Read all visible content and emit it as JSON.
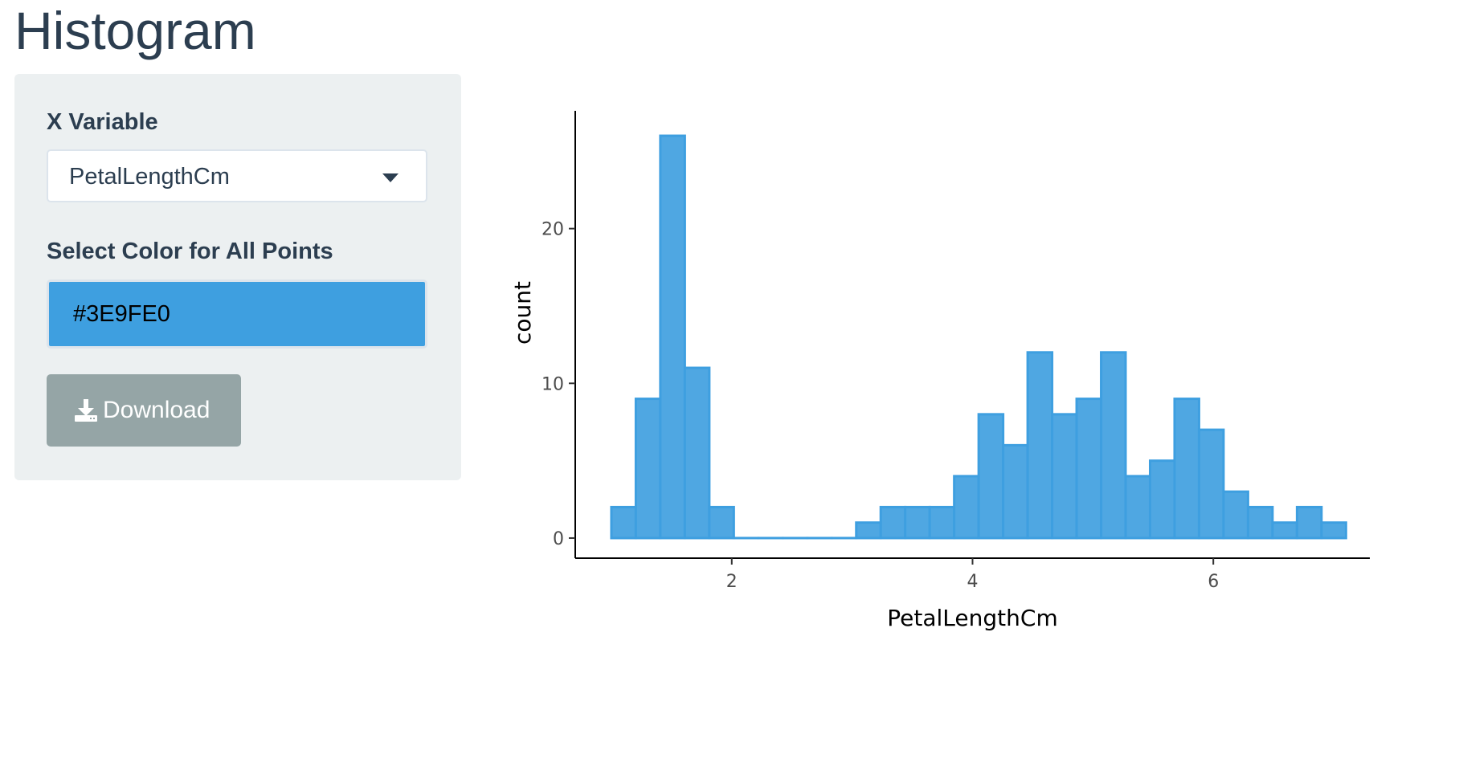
{
  "page": {
    "title": "Histogram"
  },
  "sidebar": {
    "x_variable": {
      "label": "X Variable",
      "selected": "PetalLengthCm"
    },
    "color": {
      "label": "Select Color for All Points",
      "value": "#3E9FE0"
    },
    "download": {
      "label": "Download",
      "icon": "download-icon"
    }
  },
  "colors": {
    "accent": "#3E9FE0",
    "bar_fill": "#4FA7E2",
    "bar_stroke": "#3E9FE0",
    "sidebar_bg": "#ECF0F1",
    "button_bg": "#95A5A6",
    "text": "#2C3E50"
  },
  "chart_data": {
    "type": "bar",
    "xlabel": "PetalLengthCm",
    "ylabel": "count",
    "xlim": [
      0.7,
      7.3
    ],
    "ylim": [
      -1.3,
      27.3
    ],
    "x_ticks": [
      2,
      4,
      6
    ],
    "y_ticks": [
      0,
      10,
      20
    ],
    "grid": false,
    "bin_width": 0.2034,
    "bins_start": 1.0,
    "values": [
      2,
      9,
      26,
      11,
      2,
      0,
      0,
      0,
      0,
      0,
      1,
      2,
      2,
      2,
      4,
      8,
      6,
      12,
      8,
      9,
      12,
      4,
      5,
      9,
      7,
      3,
      2,
      1,
      2,
      1
    ]
  }
}
